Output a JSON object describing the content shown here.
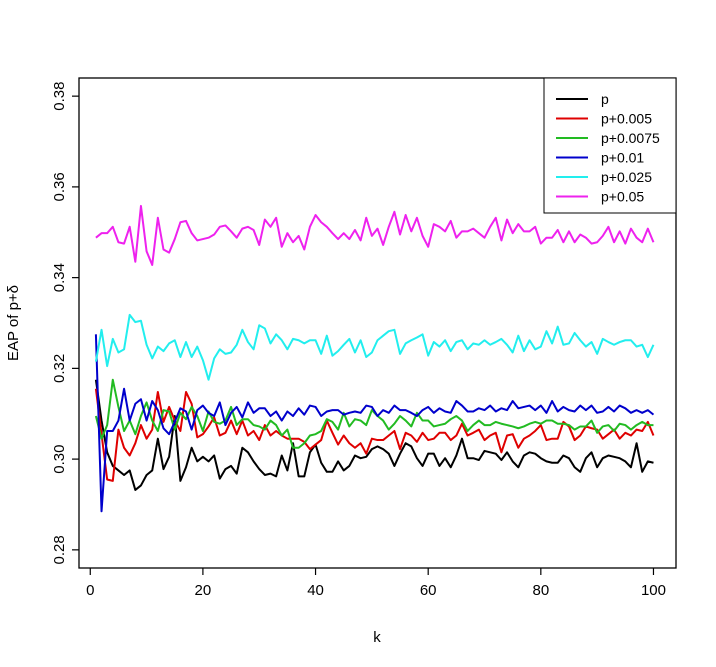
{
  "chart_data": {
    "type": "line",
    "xlabel": "k",
    "ylabel": "EAP of p+δ",
    "xlim": [
      -2,
      104
    ],
    "ylim": [
      0.276,
      0.384
    ],
    "x_ticks": [
      0,
      20,
      40,
      60,
      80,
      100
    ],
    "y_ticks": [
      0.28,
      0.3,
      0.32,
      0.34,
      0.36,
      0.38
    ],
    "x_tick_labels": [
      "0",
      "20",
      "40",
      "60",
      "80",
      "100"
    ],
    "y_tick_labels": [
      "0.28",
      "0.30",
      "0.32",
      "0.34",
      "0.36",
      "0.38"
    ],
    "grid": false,
    "legend_position": "top-right",
    "x": [
      1,
      2,
      3,
      4,
      5,
      6,
      7,
      8,
      9,
      10,
      11,
      12,
      13,
      14,
      15,
      16,
      17,
      18,
      19,
      20,
      21,
      22,
      23,
      24,
      25,
      26,
      27,
      28,
      29,
      30,
      31,
      32,
      33,
      34,
      35,
      36,
      37,
      38,
      39,
      40,
      41,
      42,
      43,
      44,
      45,
      46,
      47,
      48,
      49,
      50,
      51,
      52,
      53,
      54,
      55,
      56,
      57,
      58,
      59,
      60,
      61,
      62,
      63,
      64,
      65,
      66,
      67,
      68,
      69,
      70,
      71,
      72,
      73,
      74,
      75,
      76,
      77,
      78,
      79,
      80,
      81,
      82,
      83,
      84,
      85,
      86,
      87,
      88,
      89,
      90,
      91,
      92,
      93,
      94,
      95,
      96,
      97,
      98,
      99,
      100
    ],
    "series": [
      {
        "name": "p",
        "color": "#000000",
        "values": [
          0.3175,
          0.3085,
          0.3015,
          0.2985,
          0.2975,
          0.2965,
          0.2975,
          0.2932,
          0.2942,
          0.2965,
          0.2975,
          0.3045,
          0.2978,
          0.3005,
          0.3095,
          0.2952,
          0.2982,
          0.3025,
          0.2995,
          0.3005,
          0.2995,
          0.3008,
          0.2957,
          0.2978,
          0.2985,
          0.2968,
          0.3025,
          0.3015,
          0.2995,
          0.2978,
          0.2965,
          0.2968,
          0.2962,
          0.3008,
          0.2975,
          0.3035,
          0.2962,
          0.2962,
          0.3015,
          0.3032,
          0.2992,
          0.2972,
          0.2972,
          0.2995,
          0.2975,
          0.2985,
          0.3008,
          0.3002,
          0.3005,
          0.3022,
          0.3028,
          0.3022,
          0.3012,
          0.2985,
          0.3012,
          0.3035,
          0.3028,
          0.3002,
          0.2985,
          0.3012,
          0.3012,
          0.2985,
          0.3002,
          0.2982,
          0.3008,
          0.3045,
          0.3002,
          0.3002,
          0.2998,
          0.3018,
          0.3015,
          0.3012,
          0.2998,
          0.3015,
          0.2995,
          0.2982,
          0.3008,
          0.3015,
          0.3012,
          0.3002,
          0.2995,
          0.2992,
          0.2992,
          0.3008,
          0.3002,
          0.2982,
          0.2972,
          0.3002,
          0.3015,
          0.2982,
          0.3002,
          0.3008,
          0.3005,
          0.3002,
          0.2995,
          0.2982,
          0.3035,
          0.2972,
          0.2995,
          0.2992
        ]
      },
      {
        "name": "p+0.005",
        "color": "#df0000",
        "values": [
          0.3155,
          0.3055,
          0.2955,
          0.2952,
          0.3065,
          0.3025,
          0.3008,
          0.3035,
          0.3075,
          0.3045,
          0.3065,
          0.3148,
          0.3082,
          0.3115,
          0.3085,
          0.3062,
          0.3148,
          0.3122,
          0.3048,
          0.3055,
          0.3072,
          0.3092,
          0.3052,
          0.3058,
          0.3085,
          0.3055,
          0.3085,
          0.3052,
          0.3062,
          0.3042,
          0.3075,
          0.3052,
          0.3062,
          0.3052,
          0.3045,
          0.3045,
          0.3045,
          0.3038,
          0.3022,
          0.3032,
          0.3042,
          0.3085,
          0.3058,
          0.3032,
          0.3052,
          0.3035,
          0.3025,
          0.3035,
          0.3012,
          0.3045,
          0.3042,
          0.3042,
          0.3052,
          0.3062,
          0.3022,
          0.3058,
          0.3052,
          0.3038,
          0.3058,
          0.3042,
          0.3045,
          0.3058,
          0.3058,
          0.3042,
          0.3052,
          0.3078,
          0.3052,
          0.3058,
          0.3065,
          0.3042,
          0.3052,
          0.3058,
          0.3015,
          0.3052,
          0.3055,
          0.3025,
          0.3045,
          0.3052,
          0.3062,
          0.3075,
          0.3042,
          0.3045,
          0.3045,
          0.3082,
          0.3072,
          0.3042,
          0.3052,
          0.3072,
          0.3068,
          0.3065,
          0.3045,
          0.3055,
          0.3065,
          0.3045,
          0.3058,
          0.3052,
          0.3065,
          0.3062,
          0.3082,
          0.3052
        ]
      },
      {
        "name": "p+0.0075",
        "color": "#22bb22",
        "values": [
          0.3095,
          0.3045,
          0.3075,
          0.3175,
          0.3115,
          0.3062,
          0.3085,
          0.3055,
          0.3095,
          0.3125,
          0.3085,
          0.3062,
          0.3108,
          0.3105,
          0.3065,
          0.3102,
          0.3088,
          0.3115,
          0.3095,
          0.3062,
          0.3105,
          0.3082,
          0.3078,
          0.3085,
          0.3115,
          0.3075,
          0.3088,
          0.3088,
          0.3075,
          0.3072,
          0.3065,
          0.3085,
          0.3075,
          0.3052,
          0.3065,
          0.3025,
          0.3025,
          0.3035,
          0.3052,
          0.3055,
          0.3062,
          0.3088,
          0.3082,
          0.3065,
          0.3102,
          0.3072,
          0.3088,
          0.3085,
          0.3075,
          0.3108,
          0.3095,
          0.3085,
          0.3065,
          0.3078,
          0.3095,
          0.3085,
          0.3072,
          0.3102,
          0.3085,
          0.3085,
          0.3072,
          0.3075,
          0.3078,
          0.3088,
          0.3095,
          0.3085,
          0.3062,
          0.3075,
          0.3085,
          0.3075,
          0.3075,
          0.3082,
          0.3078,
          0.3075,
          0.3072,
          0.3068,
          0.3072,
          0.3078,
          0.3082,
          0.3078,
          0.3085,
          0.3085,
          0.3078,
          0.3078,
          0.3075,
          0.3065,
          0.3072,
          0.3072,
          0.3085,
          0.3058,
          0.3072,
          0.3075,
          0.3062,
          0.3078,
          0.3075,
          0.3065,
          0.3075,
          0.3082,
          0.3075,
          0.3075
        ]
      },
      {
        "name": "p+0.01",
        "color": "#0000cc",
        "values": [
          0.3275,
          0.2885,
          0.3062,
          0.3062,
          0.3085,
          0.3155,
          0.3085,
          0.3122,
          0.3132,
          0.3085,
          0.3128,
          0.3108,
          0.3068,
          0.3055,
          0.3082,
          0.3112,
          0.3105,
          0.3065,
          0.3108,
          0.3118,
          0.3102,
          0.3095,
          0.3125,
          0.3075,
          0.3102,
          0.3115,
          0.3092,
          0.3125,
          0.3102,
          0.3112,
          0.3112,
          0.3095,
          0.3105,
          0.3085,
          0.3105,
          0.3095,
          0.3112,
          0.3098,
          0.3118,
          0.3115,
          0.3095,
          0.3105,
          0.3108,
          0.3108,
          0.3098,
          0.3102,
          0.3105,
          0.3102,
          0.3118,
          0.3115,
          0.3095,
          0.3108,
          0.3102,
          0.3118,
          0.3108,
          0.3108,
          0.3102,
          0.3095,
          0.3108,
          0.3115,
          0.3102,
          0.3112,
          0.3105,
          0.3102,
          0.3128,
          0.3118,
          0.3105,
          0.3105,
          0.3112,
          0.3108,
          0.3118,
          0.3105,
          0.3112,
          0.3108,
          0.3128,
          0.3112,
          0.3115,
          0.3118,
          0.3108,
          0.3118,
          0.3102,
          0.3128,
          0.3105,
          0.3115,
          0.3108,
          0.3105,
          0.3118,
          0.3108,
          0.3118,
          0.3102,
          0.3105,
          0.3115,
          0.3105,
          0.3118,
          0.3112,
          0.3102,
          0.3108,
          0.3102,
          0.3108,
          0.3098
        ]
      },
      {
        "name": "p+0.025",
        "color": "#22eeee",
        "values": [
          0.3215,
          0.3285,
          0.3205,
          0.3265,
          0.3235,
          0.3242,
          0.3318,
          0.3302,
          0.3305,
          0.3252,
          0.3222,
          0.3248,
          0.3238,
          0.3255,
          0.3262,
          0.3225,
          0.3258,
          0.3225,
          0.3248,
          0.3218,
          0.3175,
          0.3222,
          0.3242,
          0.3232,
          0.3235,
          0.3252,
          0.3285,
          0.3258,
          0.3242,
          0.3295,
          0.3288,
          0.3255,
          0.3275,
          0.3262,
          0.3242,
          0.3265,
          0.3262,
          0.3255,
          0.3262,
          0.3262,
          0.3232,
          0.3272,
          0.3228,
          0.3238,
          0.3252,
          0.3265,
          0.3235,
          0.3262,
          0.3225,
          0.3235,
          0.3262,
          0.3272,
          0.3282,
          0.3285,
          0.3232,
          0.3255,
          0.3262,
          0.3268,
          0.3275,
          0.3228,
          0.3258,
          0.3248,
          0.3262,
          0.3238,
          0.3258,
          0.3262,
          0.3242,
          0.3255,
          0.3252,
          0.3262,
          0.3252,
          0.3258,
          0.3265,
          0.3252,
          0.3235,
          0.3272,
          0.3238,
          0.3262,
          0.3242,
          0.3248,
          0.3282,
          0.3255,
          0.3292,
          0.3252,
          0.3255,
          0.3278,
          0.3262,
          0.3248,
          0.3258,
          0.3232,
          0.3265,
          0.3258,
          0.3252,
          0.3258,
          0.3262,
          0.3262,
          0.3248,
          0.3252,
          0.3225,
          0.3252
        ]
      },
      {
        "name": "p+0.05",
        "color": "#ee22ee",
        "values": [
          0.3488,
          0.3498,
          0.3498,
          0.3512,
          0.3478,
          0.3475,
          0.3512,
          0.3435,
          0.3558,
          0.3458,
          0.3428,
          0.3532,
          0.3462,
          0.3455,
          0.3485,
          0.3522,
          0.3525,
          0.3498,
          0.3482,
          0.3485,
          0.3488,
          0.3495,
          0.3512,
          0.3515,
          0.3502,
          0.3488,
          0.3508,
          0.3512,
          0.3505,
          0.3472,
          0.3528,
          0.3512,
          0.3532,
          0.3468,
          0.3498,
          0.3478,
          0.3492,
          0.3462,
          0.3512,
          0.3538,
          0.3522,
          0.3512,
          0.3498,
          0.3485,
          0.3498,
          0.3485,
          0.3505,
          0.3482,
          0.3532,
          0.3492,
          0.3508,
          0.3472,
          0.3512,
          0.3545,
          0.3495,
          0.3538,
          0.3502,
          0.3532,
          0.3492,
          0.3468,
          0.3518,
          0.3512,
          0.3502,
          0.3525,
          0.3488,
          0.3502,
          0.3502,
          0.3508,
          0.3498,
          0.3488,
          0.3512,
          0.3532,
          0.3482,
          0.3528,
          0.3498,
          0.3518,
          0.3502,
          0.3502,
          0.3512,
          0.3475,
          0.3488,
          0.3488,
          0.3505,
          0.3478,
          0.3502,
          0.3478,
          0.3495,
          0.3488,
          0.3475,
          0.3478,
          0.3492,
          0.3512,
          0.3478,
          0.3502,
          0.3475,
          0.3508,
          0.3488,
          0.3478,
          0.3508,
          0.3478
        ]
      }
    ]
  }
}
